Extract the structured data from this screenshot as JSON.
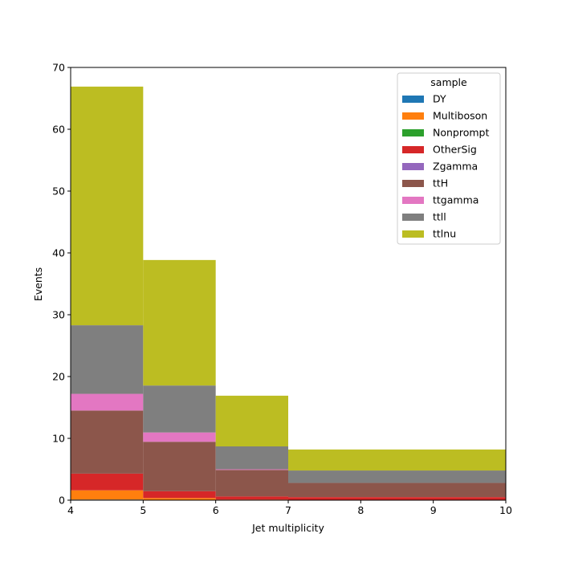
{
  "chart_data": {
    "type": "bar",
    "stacked": true,
    "histogram": true,
    "xlabel": "Jet multiplicity",
    "ylabel": "Events",
    "xlim": [
      4,
      10
    ],
    "ylim": [
      0,
      70
    ],
    "bin_edges": [
      4,
      5,
      6,
      7,
      10
    ],
    "xticks": [
      4,
      5,
      6,
      7,
      8,
      9,
      10
    ],
    "yticks": [
      0,
      10,
      20,
      30,
      40,
      50,
      60,
      70
    ],
    "legend": {
      "title": "sample",
      "placement": "top-right"
    },
    "series": [
      {
        "name": "DY",
        "color": "#1f77b4",
        "values": [
          0.1,
          0.05,
          0.0,
          0.0
        ]
      },
      {
        "name": "Multiboson",
        "color": "#ff7f0e",
        "values": [
          1.5,
          0.3,
          0.1,
          0.05
        ]
      },
      {
        "name": "Nonprompt",
        "color": "#2ca02c",
        "values": [
          0.0,
          0.0,
          0.0,
          0.0
        ]
      },
      {
        "name": "OtherSig",
        "color": "#d62728",
        "values": [
          2.7,
          1.1,
          0.5,
          0.45
        ]
      },
      {
        "name": "Zgamma",
        "color": "#9467bd",
        "values": [
          0.0,
          0.0,
          0.0,
          0.0
        ]
      },
      {
        "name": "ttH",
        "color": "#8c564b",
        "values": [
          10.2,
          8.0,
          4.3,
          2.3
        ]
      },
      {
        "name": "ttgamma",
        "color": "#e377c2",
        "values": [
          2.7,
          1.5,
          0.1,
          0.0
        ]
      },
      {
        "name": "ttll",
        "color": "#7f7f7f",
        "values": [
          11.1,
          7.6,
          3.7,
          2.0
        ]
      },
      {
        "name": "ttlnu",
        "color": "#bcbd22",
        "values": [
          38.6,
          20.3,
          8.2,
          3.4
        ]
      }
    ]
  }
}
